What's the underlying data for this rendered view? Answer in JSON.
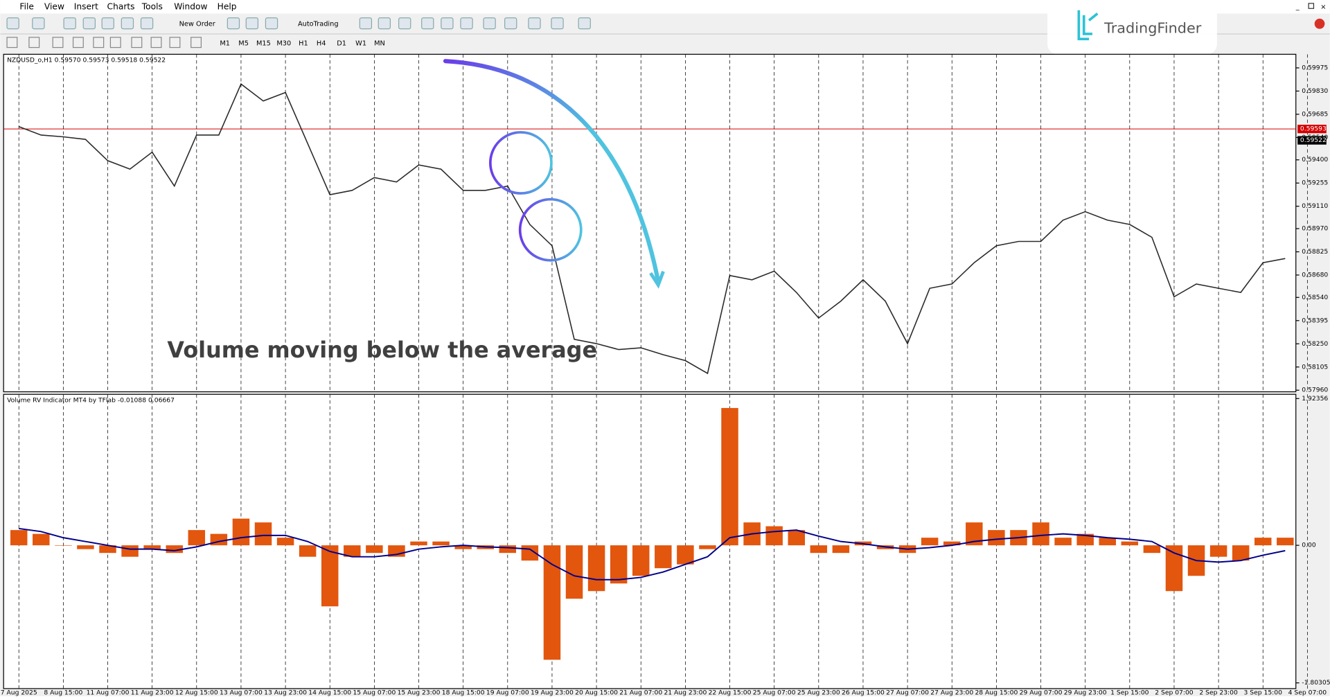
{
  "menu": [
    "File",
    "View",
    "Insert",
    "Charts",
    "Tools",
    "Window",
    "Help"
  ],
  "toolbar": {
    "new_order": "New Order",
    "autotrading": "AutoTrading",
    "timeframes": [
      "M1",
      "M5",
      "M15",
      "M30",
      "H1",
      "H4",
      "D1",
      "W1",
      "MN"
    ]
  },
  "logo": "TradingFinder",
  "annotation": "Volume moving below the average",
  "chart_data": [
    {
      "type": "line",
      "title": "NZDUSD_o,H1  0.59570 0.59573 0.59518 0.59522",
      "color": "#2b2b2b",
      "categories": [
        "7 Aug 2025",
        null,
        "8 Aug 15:00",
        null,
        "11 Aug 07:00",
        null,
        "11 Aug 23:00",
        null,
        "12 Aug 15:00",
        null,
        "13 Aug 07:00",
        null,
        "13 Aug 23:00",
        null,
        "14 Aug 15:00",
        null,
        "15 Aug 07:00",
        null,
        "15 Aug 23:00",
        null,
        "18 Aug 15:00",
        null,
        "19 Aug 07:00",
        null,
        "19 Aug 23:00",
        null,
        "20 Aug 15:00",
        null,
        "21 Aug 07:00",
        null,
        "21 Aug 23:00",
        null,
        "22 Aug 15:00",
        null,
        "25 Aug 07:00",
        null,
        "25 Aug 23:00",
        null,
        "26 Aug 15:00",
        null,
        "27 Aug 07:00",
        null,
        "27 Aug 23:00",
        null,
        "28 Aug 15:00",
        null,
        "29 Aug 07:00",
        null,
        "29 Aug 23:00",
        null,
        "1 Sep 15:00",
        null,
        "2 Sep 07:00",
        null,
        "2 Sep 23:00",
        null,
        "3 Sep 15:00",
        null,
        "4 Sep 07:00"
      ],
      "values": [
        0.59608,
        0.59555,
        0.59544,
        0.59528,
        0.59395,
        0.59342,
        0.59448,
        0.59236,
        0.59555,
        0.59555,
        0.59874,
        0.59768,
        0.59821,
        0.59502,
        0.59182,
        0.59209,
        0.59289,
        0.59262,
        0.59368,
        0.59342,
        0.59209,
        0.59209,
        0.59236,
        0.58996,
        0.58863,
        0.58278,
        0.58251,
        0.58214,
        0.58225,
        0.58182,
        0.58145,
        0.58065,
        0.58677,
        0.5865,
        0.58704,
        0.58571,
        0.58411,
        0.58517,
        0.5865,
        0.58517,
        0.58251,
        0.58597,
        0.58624,
        0.58757,
        0.58863,
        0.5889,
        0.5889,
        0.59023,
        0.59076,
        0.59023,
        0.58996,
        0.58916,
        0.58544,
        0.58624,
        0.58597,
        0.58571,
        0.58757,
        0.58783,
        null
      ],
      "ylim": [
        0.5795,
        0.6006
      ],
      "yticks": [
        0.59975,
        {
          "value": 0.5983,
          "label": "0.59830"
        },
        0.59685,
        {
          "value": 0.5954,
          "label": "0.59540"
        },
        {
          "value": 0.594,
          "label": "0.59400"
        },
        0.59255,
        {
          "value": 0.5911,
          "label": "0.59110"
        },
        {
          "value": 0.5897,
          "label": "0.58970"
        },
        0.58825,
        {
          "value": 0.5868,
          "label": "0.58680"
        },
        {
          "value": 0.5854,
          "label": "0.58540"
        },
        0.58395,
        {
          "value": 0.5825,
          "label": "0.58250"
        },
        0.58105,
        {
          "value": 0.5796,
          "label": "0.57960"
        }
      ],
      "price_lines": [
        {
          "value": 0.59593,
          "color": "#d40000"
        },
        {
          "value": 0.59522,
          "color": "#000000"
        }
      ]
    },
    {
      "type": "bar",
      "title": "Volume RV Indicator MT4 by TFlab -0.01088 0.06667",
      "color": "#e2560e",
      "values": [
        0.2,
        0.15,
        0.0,
        -0.05,
        -0.1,
        -0.15,
        -0.05,
        -0.1,
        0.2,
        0.15,
        0.35,
        0.3,
        0.1,
        -0.15,
        -0.8,
        -0.15,
        -0.1,
        -0.15,
        0.05,
        0.05,
        -0.05,
        -0.05,
        -0.1,
        -0.2,
        -1.5,
        -0.7,
        -0.6,
        -0.5,
        -0.4,
        -0.3,
        -0.25,
        -0.05,
        1.8,
        0.3,
        0.25,
        0.2,
        -0.1,
        -0.1,
        0.05,
        -0.05,
        -0.1,
        0.1,
        0.05,
        0.3,
        0.2,
        0.2,
        0.3,
        0.1,
        0.15,
        0.1,
        0.05,
        -0.1,
        -0.6,
        -0.4,
        -0.15,
        -0.2,
        0.1,
        0.1,
        null
      ],
      "average_color": "#00008b",
      "average_values": [
        0.22,
        0.18,
        0.1,
        0.05,
        0.0,
        -0.05,
        -0.05,
        -0.07,
        -0.02,
        0.05,
        0.1,
        0.13,
        0.13,
        0.05,
        -0.08,
        -0.15,
        -0.15,
        -0.12,
        -0.05,
        -0.02,
        0.0,
        -0.02,
        -0.03,
        -0.05,
        -0.25,
        -0.4,
        -0.45,
        -0.45,
        -0.42,
        -0.35,
        -0.25,
        -0.15,
        0.1,
        0.15,
        0.18,
        0.2,
        0.12,
        0.05,
        0.02,
        -0.02,
        -0.05,
        -0.03,
        0.0,
        0.05,
        0.08,
        0.1,
        0.13,
        0.15,
        0.13,
        0.1,
        0.08,
        0.05,
        -0.1,
        -0.2,
        -0.22,
        -0.2,
        -0.13,
        -0.07,
        null
      ],
      "ylim": [
        -1.878,
        1.979
      ],
      "yticks": [
        1.92356,
        {
          "value": 0,
          "label": "0.00"
        },
        -1.80305
      ]
    }
  ]
}
